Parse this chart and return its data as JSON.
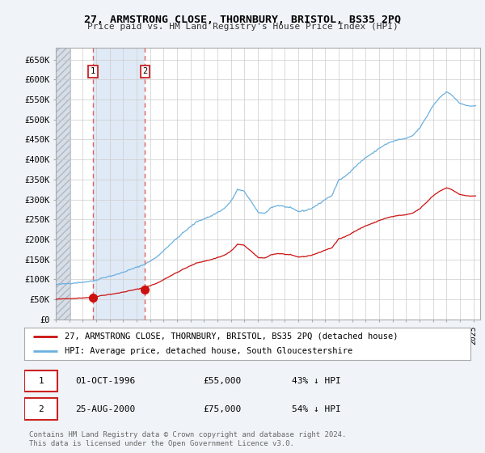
{
  "title": "27, ARMSTRONG CLOSE, THORNBURY, BRISTOL, BS35 2PQ",
  "subtitle": "Price paid vs. HM Land Registry's House Price Index (HPI)",
  "ylabel_ticks": [
    "£0",
    "£50K",
    "£100K",
    "£150K",
    "£200K",
    "£250K",
    "£300K",
    "£350K",
    "£400K",
    "£450K",
    "£500K",
    "£550K",
    "£600K",
    "£650K"
  ],
  "ytick_values": [
    0,
    50000,
    100000,
    150000,
    200000,
    250000,
    300000,
    350000,
    400000,
    450000,
    500000,
    550000,
    600000,
    650000
  ],
  "ylim": [
    0,
    680000
  ],
  "xlim_start": 1994.0,
  "xlim_end": 2025.5,
  "hpi_color": "#6ab0de",
  "price_color": "#cc1111",
  "marker_color": "#cc1111",
  "dashed_line_color": "#e06060",
  "background_color": "#f0f4f8",
  "plot_bg_color": "#ffffff",
  "hatch_bg_color": "#c8d0dc",
  "shaded_region_color": "#dde8f5",
  "legend_label_price": "27, ARMSTRONG CLOSE, THORNBURY, BRISTOL, BS35 2PQ (detached house)",
  "legend_label_hpi": "HPI: Average price, detached house, South Gloucestershire",
  "transaction1_date": "01-OCT-1996",
  "transaction1_price": "£55,000",
  "transaction1_pct": "43% ↓ HPI",
  "transaction2_date": "25-AUG-2000",
  "transaction2_price": "£75,000",
  "transaction2_pct": "54% ↓ HPI",
  "footnote": "Contains HM Land Registry data © Crown copyright and database right 2024.\nThis data is licensed under the Open Government Licence v3.0.",
  "vline1_x": 1996.75,
  "vline2_x": 2000.62,
  "marker1_x": 1996.75,
  "marker1_y": 55000,
  "marker2_x": 2000.62,
  "marker2_y": 75000,
  "num1_x": 1996.75,
  "num1_y": 620000,
  "num2_x": 2000.62,
  "num2_y": 620000,
  "hatch_end": 1995.08
}
